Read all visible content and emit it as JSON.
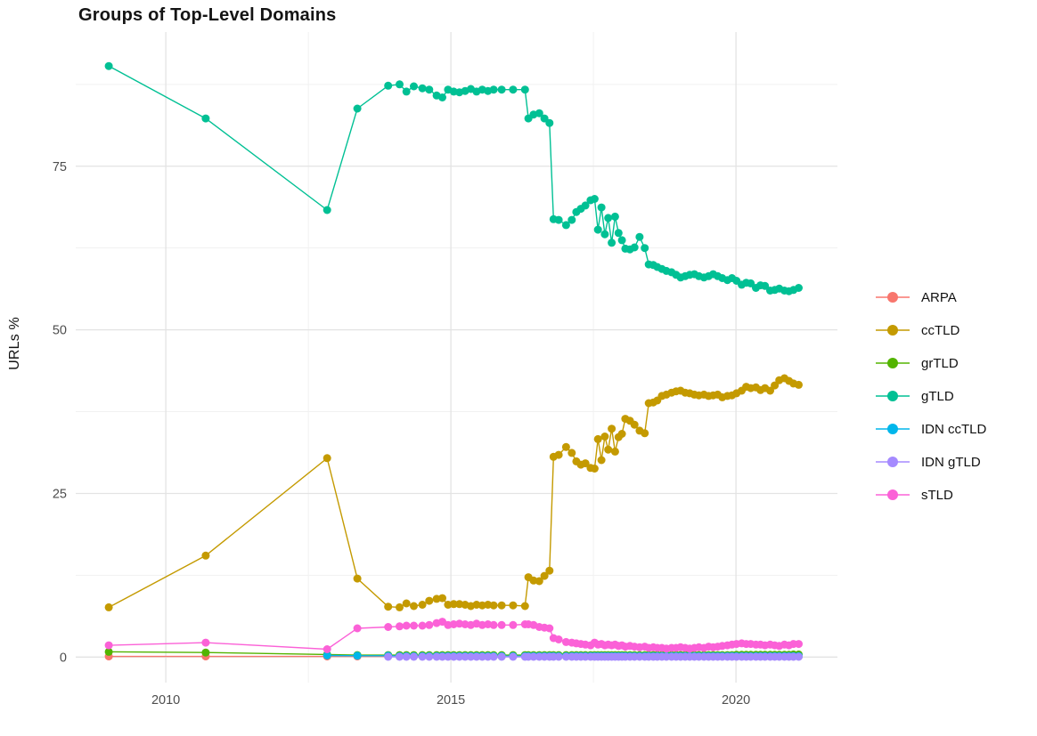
{
  "chart_data": {
    "type": "line",
    "title": "Groups of Top-Level Domains",
    "xlabel": "",
    "ylabel": "URLs %",
    "grid": "on",
    "legend_position": "right",
    "xlim": [
      2008.42,
      2021.78
    ],
    "ylim": [
      -3.9,
      95.5
    ],
    "x_ticks": {
      "values": [
        2010,
        2015,
        2020
      ],
      "labels": [
        "2010",
        "2015",
        "2020"
      ]
    },
    "x_minor_ticks": [
      2012.5,
      2017.5
    ],
    "y_ticks": {
      "values": [
        0,
        25,
        50,
        75
      ],
      "labels": [
        "0",
        "25",
        "50",
        "75"
      ]
    },
    "y_minor_ticks": [
      12.5,
      37.5,
      62.5,
      87.5
    ],
    "x": [
      2009.0,
      2010.7,
      2012.83,
      2013.36,
      2013.9,
      2014.1,
      2014.22,
      2014.35,
      2014.5,
      2014.62,
      2014.75,
      2014.85,
      2014.95,
      2015.05,
      2015.15,
      2015.25,
      2015.35,
      2015.45,
      2015.55,
      2015.65,
      2015.75,
      2015.89,
      2016.09,
      2016.3,
      2016.36,
      2016.45,
      2016.55,
      2016.64,
      2016.73,
      2016.8,
      2016.89,
      2017.02,
      2017.12,
      2017.2,
      2017.28,
      2017.36,
      2017.45,
      2017.52,
      2017.58,
      2017.64,
      2017.7,
      2017.76,
      2017.82,
      2017.88,
      2017.94,
      2018.0,
      2018.06,
      2018.14,
      2018.22,
      2018.31,
      2018.4,
      2018.47,
      2018.55,
      2018.62,
      2018.7,
      2018.78,
      2018.87,
      2018.95,
      2019.03,
      2019.11,
      2019.19,
      2019.27,
      2019.35,
      2019.44,
      2019.52,
      2019.6,
      2019.68,
      2019.76,
      2019.85,
      2019.93,
      2020.01,
      2020.1,
      2020.18,
      2020.26,
      2020.35,
      2020.43,
      2020.51,
      2020.6,
      2020.68,
      2020.76,
      2020.85,
      2020.93,
      2021.01,
      2021.1
    ],
    "series": [
      {
        "name": "ARPA",
        "color": "#F8766D",
        "values": [
          0.1,
          0.1,
          0.1,
          0.1,
          0.1,
          0.1,
          0.1,
          0.1,
          0.1,
          0.1,
          0.1,
          0.1,
          0.1,
          0.1,
          0.1,
          0.1,
          0.1,
          0.1,
          0.1,
          0.1,
          0.1,
          0.1,
          0.1,
          0.1,
          0.1,
          0.1,
          0.1,
          0.1,
          0.1,
          0.1,
          0.1,
          0.1,
          0.1,
          0.1,
          0.1,
          0.1,
          0.1,
          0.1,
          0.1,
          0.1,
          0.1,
          0.1,
          0.1,
          0.1,
          0.1,
          0.1,
          0.1,
          0.1,
          0.1,
          0.1,
          0.1,
          0.1,
          0.1,
          0.1,
          0.1,
          0.1,
          0.1,
          0.1,
          0.1,
          0.1,
          0.1,
          0.1,
          0.1,
          0.1,
          0.1,
          0.1,
          0.1,
          0.1,
          0.1,
          0.1,
          0.1,
          0.1,
          0.1,
          0.1,
          0.1,
          0.1,
          0.1,
          0.1,
          0.1,
          0.1,
          0.1,
          0.1,
          0.1,
          0.1
        ]
      },
      {
        "name": "ccTLD",
        "color": "#C49A00",
        "values": [
          7.6,
          15.5,
          30.4,
          12.0,
          7.7,
          7.6,
          8.2,
          7.8,
          8.0,
          8.6,
          8.9,
          9.0,
          8.0,
          8.1,
          8.1,
          8.0,
          7.8,
          8.0,
          7.9,
          8.0,
          7.9,
          7.9,
          7.9,
          7.8,
          12.2,
          11.7,
          11.6,
          12.4,
          13.2,
          30.6,
          30.9,
          32.1,
          31.2,
          29.9,
          29.4,
          29.6,
          28.9,
          28.8,
          33.3,
          30.1,
          33.7,
          31.7,
          34.9,
          31.4,
          33.6,
          34.1,
          36.4,
          36.1,
          35.5,
          34.6,
          34.2,
          38.8,
          38.9,
          39.2,
          39.9,
          40.1,
          40.4,
          40.6,
          40.7,
          40.4,
          40.3,
          40.1,
          40.0,
          40.1,
          39.9,
          40.0,
          40.1,
          39.7,
          39.9,
          40.0,
          40.3,
          40.7,
          41.3,
          41.1,
          41.2,
          40.8,
          41.1,
          40.7,
          41.5,
          42.3,
          42.6,
          42.2,
          41.8,
          41.6
        ]
      },
      {
        "name": "grTLD",
        "color": "#53B400",
        "values": [
          0.8,
          0.7,
          0.4,
          0.3,
          0.3,
          0.3,
          0.3,
          0.3,
          0.3,
          0.3,
          0.3,
          0.3,
          0.3,
          0.3,
          0.3,
          0.3,
          0.3,
          0.3,
          0.3,
          0.3,
          0.3,
          0.3,
          0.3,
          0.3,
          0.3,
          0.3,
          0.3,
          0.3,
          0.3,
          0.3,
          0.3,
          0.3,
          0.3,
          0.3,
          0.3,
          0.3,
          0.3,
          0.3,
          0.3,
          0.3,
          0.3,
          0.3,
          0.3,
          0.3,
          0.3,
          0.3,
          0.3,
          0.3,
          0.3,
          0.3,
          0.3,
          0.3,
          0.3,
          0.3,
          0.3,
          0.3,
          0.3,
          0.3,
          0.3,
          0.3,
          0.3,
          0.3,
          0.3,
          0.3,
          0.3,
          0.3,
          0.3,
          0.3,
          0.3,
          0.3,
          0.35,
          0.35,
          0.35,
          0.35,
          0.35,
          0.35,
          0.35,
          0.35,
          0.35,
          0.35,
          0.35,
          0.35,
          0.4,
          0.4
        ]
      },
      {
        "name": "gTLD",
        "color": "#00C094",
        "values": [
          90.3,
          82.3,
          68.3,
          83.8,
          87.3,
          87.5,
          86.4,
          87.2,
          86.9,
          86.7,
          85.8,
          85.5,
          86.7,
          86.4,
          86.3,
          86.5,
          86.8,
          86.4,
          86.7,
          86.5,
          86.7,
          86.7,
          86.7,
          86.7,
          82.3,
          82.9,
          83.1,
          82.3,
          81.6,
          66.9,
          66.8,
          66.0,
          66.8,
          68.0,
          68.5,
          69.0,
          69.8,
          70.0,
          65.3,
          68.7,
          64.6,
          67.1,
          63.3,
          67.3,
          64.8,
          63.7,
          62.4,
          62.3,
          62.6,
          64.2,
          62.5,
          60.0,
          59.9,
          59.6,
          59.3,
          59.0,
          58.8,
          58.4,
          58.0,
          58.2,
          58.4,
          58.5,
          58.2,
          58.0,
          58.2,
          58.5,
          58.2,
          57.9,
          57.6,
          57.9,
          57.5,
          56.9,
          57.2,
          57.1,
          56.4,
          56.8,
          56.7,
          56.0,
          56.1,
          56.3,
          56.0,
          55.9,
          56.1,
          56.4
        ]
      },
      {
        "name": "IDN ccTLD",
        "color": "#00B6EB",
        "values": [
          null,
          null,
          0.25,
          0.2,
          0.2,
          0.15,
          0.15,
          0.15,
          0.15,
          0.15,
          0.15,
          0.15,
          0.15,
          0.15,
          0.15,
          0.15,
          0.15,
          0.15,
          0.15,
          0.15,
          0.15,
          0.15,
          0.15,
          0.15,
          0.15,
          0.15,
          0.15,
          0.15,
          0.15,
          0.15,
          0.15,
          0.15,
          0.15,
          0.15,
          0.15,
          0.15,
          0.15,
          0.15,
          0.15,
          0.15,
          0.15,
          0.15,
          0.15,
          0.15,
          0.15,
          0.15,
          0.15,
          0.15,
          0.15,
          0.15,
          0.15,
          0.15,
          0.15,
          0.15,
          0.15,
          0.15,
          0.15,
          0.15,
          0.15,
          0.15,
          0.15,
          0.15,
          0.15,
          0.15,
          0.15,
          0.15,
          0.15,
          0.15,
          0.15,
          0.15,
          0.15,
          0.15,
          0.15,
          0.15,
          0.15,
          0.15,
          0.15,
          0.15,
          0.15,
          0.15,
          0.15,
          0.15,
          0.15,
          0.15
        ]
      },
      {
        "name": "IDN gTLD",
        "color": "#A58AFF",
        "values": [
          null,
          null,
          null,
          null,
          0.05,
          0.05,
          0.05,
          0.05,
          0.05,
          0.05,
          0.05,
          0.05,
          0.05,
          0.05,
          0.05,
          0.05,
          0.05,
          0.05,
          0.05,
          0.05,
          0.05,
          0.05,
          0.05,
          0.05,
          0.05,
          0.05,
          0.05,
          0.05,
          0.05,
          0.05,
          0.05,
          0.05,
          0.05,
          0.05,
          0.05,
          0.05,
          0.05,
          0.05,
          0.05,
          0.05,
          0.05,
          0.05,
          0.05,
          0.05,
          0.05,
          0.05,
          0.05,
          0.05,
          0.05,
          0.05,
          0.05,
          0.05,
          0.05,
          0.05,
          0.05,
          0.05,
          0.05,
          0.05,
          0.05,
          0.05,
          0.05,
          0.05,
          0.05,
          0.05,
          0.05,
          0.05,
          0.05,
          0.05,
          0.05,
          0.05,
          0.05,
          0.05,
          0.05,
          0.05,
          0.05,
          0.05,
          0.05,
          0.05,
          0.05,
          0.05,
          0.05,
          0.05,
          0.05,
          0.05
        ]
      },
      {
        "name": "sTLD",
        "color": "#FB61D7",
        "values": [
          1.8,
          2.2,
          1.2,
          4.4,
          4.6,
          4.7,
          4.8,
          4.8,
          4.8,
          4.9,
          5.2,
          5.4,
          4.9,
          5.0,
          5.1,
          5.0,
          4.9,
          5.1,
          4.9,
          5.0,
          4.9,
          4.9,
          4.9,
          5.0,
          5.0,
          4.9,
          4.6,
          4.5,
          4.4,
          2.9,
          2.7,
          2.3,
          2.2,
          2.1,
          2.0,
          1.9,
          1.8,
          2.2,
          1.9,
          2.0,
          1.8,
          1.9,
          1.8,
          1.9,
          1.7,
          1.8,
          1.6,
          1.7,
          1.6,
          1.5,
          1.6,
          1.4,
          1.5,
          1.4,
          1.4,
          1.3,
          1.4,
          1.4,
          1.5,
          1.4,
          1.3,
          1.4,
          1.5,
          1.4,
          1.6,
          1.5,
          1.6,
          1.7,
          1.8,
          1.9,
          2.0,
          2.1,
          2.0,
          2.0,
          1.9,
          1.9,
          1.8,
          1.9,
          1.8,
          1.7,
          1.9,
          1.8,
          2.0,
          2.0
        ]
      }
    ]
  }
}
